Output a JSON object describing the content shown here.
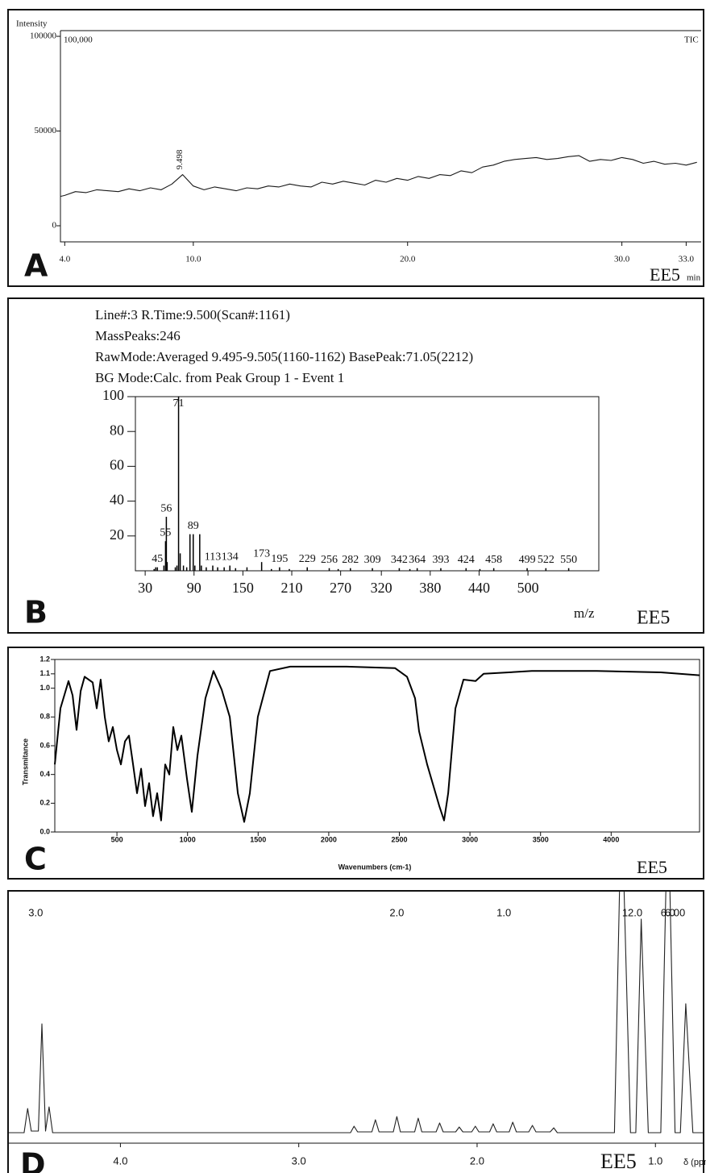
{
  "chart_data": [
    {
      "type": "line",
      "panel": "A",
      "sample_label": "EE5",
      "y_label": "Intensity",
      "x_label": "min",
      "scale_label": "100,000",
      "trace_label": "TIC",
      "peak_label": "9.498",
      "color": "#1a1a1a",
      "x": [
        3.8,
        4.0,
        4.5,
        5.0,
        5.5,
        6.0,
        6.5,
        7.0,
        7.5,
        8.0,
        8.5,
        9.0,
        9.5,
        10.0,
        10.5,
        11.0,
        11.5,
        12.0,
        12.5,
        13.0,
        13.5,
        14.0,
        14.5,
        15.0,
        15.5,
        16.0,
        16.5,
        17.0,
        17.5,
        18.0,
        18.5,
        19.0,
        19.5,
        20.0,
        20.5,
        21.0,
        21.5,
        22.0,
        22.5,
        23.0,
        23.5,
        24.0,
        24.5,
        25.0,
        25.5,
        26.0,
        26.5,
        27.0,
        27.5,
        28.0,
        28.5,
        29.0,
        29.5,
        30.0,
        30.5,
        31.0,
        31.5,
        32.0,
        32.5,
        33.0,
        33.5
      ],
      "values": [
        15500,
        16000,
        18000,
        17500,
        19000,
        18500,
        18000,
        19500,
        18500,
        20000,
        19000,
        22000,
        27000,
        21000,
        19000,
        20500,
        19500,
        18500,
        20000,
        19500,
        21000,
        20500,
        22000,
        21000,
        20500,
        23000,
        22000,
        23500,
        22500,
        21500,
        24000,
        23000,
        25000,
        24000,
        26000,
        25000,
        27000,
        26500,
        29000,
        28000,
        31000,
        32000,
        34000,
        35000,
        35500,
        36000,
        35000,
        35500,
        36500,
        37000,
        34000,
        35000,
        34500,
        36000,
        35000,
        33000,
        34000,
        32500,
        33000,
        32000,
        33500
      ],
      "xlim": [
        3.8,
        33.7
      ],
      "ylim": [
        -8500,
        103000
      ],
      "xticks": [
        {
          "value": 4,
          "label": "4.0"
        },
        {
          "value": 10,
          "label": "10.0"
        },
        {
          "value": 20,
          "label": "20.0"
        },
        {
          "value": 30,
          "label": "30.0"
        },
        {
          "value": 33,
          "label": "33.0"
        }
      ],
      "yticks": [
        0,
        50000,
        100000
      ]
    },
    {
      "type": "bar",
      "panel": "B",
      "sample_label": "EE5",
      "x_label": "m/z",
      "color": "#000000",
      "header": [
        "Line#:3   R.Time:9.500(Scan#:1161)",
        "MassPeaks:246",
        "RawMode:Averaged 9.495-9.505(1160-1162)  BasePeak:71.05(2212)",
        "BG Mode:Calc. from Peak  Group 1 - Event 1"
      ],
      "x": [
        45,
        55,
        56,
        71,
        89,
        113,
        134,
        173,
        195,
        229,
        256,
        282,
        309,
        342,
        364,
        393,
        424,
        458,
        499,
        522,
        550
      ],
      "values": [
        2,
        17,
        31,
        100,
        21,
        3,
        3,
        5,
        2,
        2,
        1.5,
        1.5,
        1.5,
        1.5,
        1.5,
        1.5,
        1.5,
        1.5,
        1.5,
        1.5,
        1.5
      ],
      "minor_x": [
        41,
        43,
        53,
        57,
        67,
        69,
        73,
        77,
        81,
        85,
        91,
        97,
        99,
        105,
        119,
        127,
        141,
        155,
        185,
        207,
        267,
        355,
        441
      ],
      "minor_values": [
        1,
        2,
        3,
        5,
        2,
        3,
        10,
        3,
        2,
        21,
        3,
        21,
        3,
        2,
        2,
        2,
        1.5,
        2,
        1,
        1,
        1,
        1,
        1
      ],
      "xlim": [
        18,
        587
      ],
      "ylim": [
        0,
        100
      ],
      "xticks": [
        30,
        90,
        150,
        210,
        270,
        320,
        380,
        440,
        500
      ],
      "yticks": [
        20,
        40,
        60,
        80,
        100
      ]
    },
    {
      "type": "line",
      "panel": "C",
      "sample_label": "EE5",
      "x_label": "Wavenumbers (cm-1)",
      "y_label": "Transmitance",
      "color": "#000000",
      "x": [
        60,
        100,
        157,
        186,
        214,
        243,
        271,
        328,
        357,
        385,
        414,
        442,
        471,
        500,
        528,
        557,
        585,
        614,
        642,
        671,
        699,
        728,
        756,
        785,
        813,
        842,
        871,
        899,
        928,
        956,
        996,
        1030,
        1070,
        1127,
        1184,
        1242,
        1299,
        1356,
        1401,
        1441,
        1498,
        1584,
        1727,
        2126,
        2469,
        2554,
        2611,
        2640,
        2697,
        2783,
        2817,
        2846,
        2897,
        2954,
        3040,
        3097,
        3439,
        3896,
        4352,
        4626
      ],
      "values": [
        0.47,
        0.86,
        1.05,
        0.95,
        0.71,
        0.98,
        1.08,
        1.04,
        0.86,
        1.06,
        0.8,
        0.63,
        0.73,
        0.57,
        0.47,
        0.63,
        0.67,
        0.47,
        0.27,
        0.44,
        0.18,
        0.34,
        0.11,
        0.27,
        0.08,
        0.47,
        0.4,
        0.73,
        0.57,
        0.67,
        0.37,
        0.14,
        0.53,
        0.93,
        1.12,
        0.99,
        0.8,
        0.27,
        0.07,
        0.27,
        0.8,
        1.12,
        1.15,
        1.15,
        1.14,
        1.08,
        0.93,
        0.7,
        0.47,
        0.18,
        0.08,
        0.27,
        0.86,
        1.06,
        1.05,
        1.1,
        1.12,
        1.12,
        1.11,
        1.09
      ],
      "xlim": [
        60,
        4626
      ],
      "ylim": [
        0,
        1.2
      ],
      "xticks": [
        500,
        1000,
        1500,
        2000,
        2500,
        3000,
        3500,
        4000
      ],
      "yticks": [
        {
          "value": 0,
          "label": "0.0"
        },
        0.2,
        0.4,
        0.6,
        0.8,
        {
          "value": 1,
          "label": "1.0"
        },
        1.1,
        1.2
      ]
    },
    {
      "type": "line",
      "panel": "D",
      "sample_label": "EE5",
      "x_label": "δ (ppm)",
      "color": "#222222",
      "x": [
        4.63,
        4.54,
        4.52,
        4.5,
        4.46,
        4.44,
        4.42,
        4.4,
        4.38,
        2.8,
        2.71,
        2.69,
        2.67,
        2.59,
        2.57,
        2.55,
        2.47,
        2.45,
        2.43,
        2.35,
        2.33,
        2.31,
        2.23,
        2.21,
        2.19,
        2.12,
        2.1,
        2.08,
        2.03,
        2.01,
        1.99,
        1.93,
        1.91,
        1.89,
        1.82,
        1.8,
        1.78,
        1.71,
        1.69,
        1.67,
        1.59,
        1.57,
        1.55,
        1.23,
        1.19,
        1.14,
        1.11,
        1.08,
        1.04,
        0.97,
        0.93,
        0.89,
        0.86,
        0.83,
        0.79,
        0.73
      ],
      "values": [
        0,
        0,
        30,
        2,
        2,
        135,
        2,
        32,
        0,
        0,
        0,
        8,
        1,
        1,
        16,
        1,
        1,
        20,
        1,
        1,
        18,
        1,
        1,
        12,
        1,
        1,
        7,
        1,
        1,
        8,
        1,
        1,
        11,
        1,
        1,
        13,
        1,
        1,
        9,
        1,
        1,
        6,
        0,
        0,
        420,
        0,
        0,
        265,
        0,
        0,
        420,
        0,
        0,
        160,
        0,
        0
      ],
      "xlim": [
        4.63,
        0.73
      ],
      "ylim": [
        0,
        300
      ],
      "xticks": [
        {
          "value": 4,
          "label": "4.0"
        },
        {
          "value": 3,
          "label": "3.0"
        },
        {
          "value": 2,
          "label": "2.0"
        },
        {
          "value": 1,
          "label": "1.0"
        }
      ],
      "annotations": [
        {
          "text": "3.0",
          "x": 4.475
        },
        {
          "text": "2.0",
          "x": 2.45
        },
        {
          "text": "1.0",
          "x": 1.85
        },
        {
          "text": "12.0",
          "x": 1.13
        },
        {
          "text": "6.0",
          "x": 0.93
        },
        {
          "text": "6.00",
          "x": 0.89
        }
      ]
    }
  ]
}
